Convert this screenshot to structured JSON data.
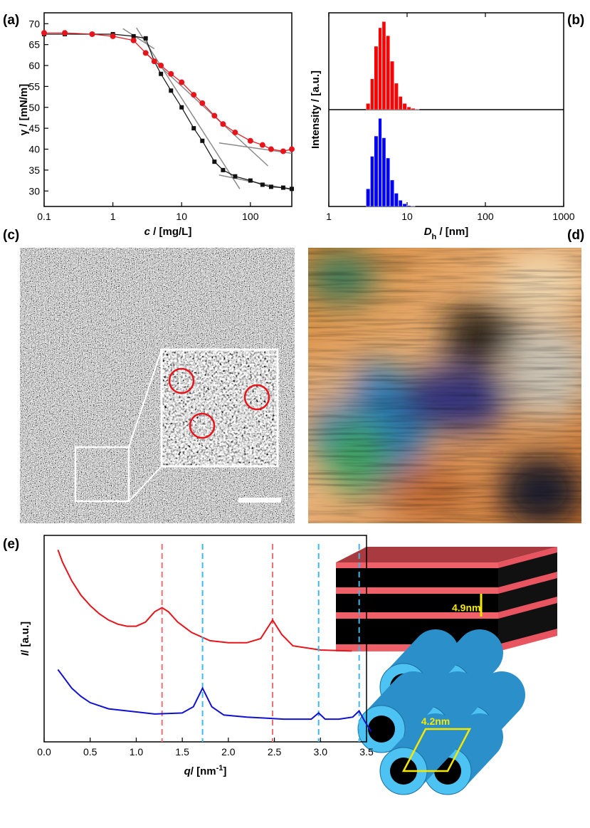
{
  "panel_labels": [
    "(a)",
    "(b)",
    "(c)",
    "(d)",
    "(e)"
  ],
  "chart_data": [
    {
      "type": "line",
      "x_scale": "log",
      "x_label": [
        "c",
        " / [mg/L]"
      ],
      "y_label": "γ / [mN/m]",
      "xlim": [
        0.1,
        400
      ],
      "xticks": [
        0.1,
        1,
        10,
        100
      ],
      "ylim": [
        26.3,
        72.6
      ],
      "yticks": [
        30,
        35,
        40,
        45,
        50,
        55,
        60,
        65,
        70
      ],
      "x": [
        0.1,
        0.2,
        0.5,
        1,
        2,
        3,
        4,
        5,
        7,
        10,
        15,
        20,
        30,
        40,
        60,
        100,
        150,
        200,
        300,
        400
      ],
      "series": [
        {
          "color": "#111111",
          "marker": "square",
          "values": [
            67.5,
            67.5,
            67.5,
            67.5,
            67,
            66.5,
            61,
            58,
            54,
            50,
            45,
            42,
            37,
            35,
            33.5,
            32.5,
            31.5,
            31,
            30.8,
            30.5
          ]
        },
        {
          "color": "#e8141b",
          "marker": "circle",
          "values": [
            67.8,
            67.8,
            67.5,
            67,
            66,
            63,
            61,
            60,
            58,
            56,
            53,
            51,
            48,
            46,
            44,
            42,
            41,
            40,
            39.5,
            40
          ]
        }
      ],
      "fit_color": "#8a8a8a",
      "fits": [
        {
          "x": [
            1.4,
            4
          ],
          "y": [
            68.8,
            64
          ]
        },
        {
          "x": [
            2.2,
            70
          ],
          "y": [
            69,
            30.5
          ]
        },
        {
          "x": [
            3,
            180
          ],
          "y": [
            63,
            36
          ]
        },
        {
          "x": [
            35,
            400
          ],
          "y": [
            41.5,
            39
          ]
        },
        {
          "x": [
            35,
            400
          ],
          "y": [
            33.8,
            30.3
          ]
        }
      ]
    },
    {
      "type": "histogram",
      "x_scale": "log",
      "x_label": [
        "D",
        "h",
        " / [nm]"
      ],
      "y_label": "Intensity / [a.u.]",
      "xlim": [
        1,
        1000
      ],
      "xticks": [
        1,
        10,
        100,
        1000
      ],
      "ylim": [
        0,
        1.1
      ],
      "bins": [
        3.0,
        3.4,
        3.8,
        4.3,
        4.8,
        5.4,
        6.1,
        6.9,
        7.8,
        8.8,
        10,
        11.3,
        12.8,
        14.5
      ],
      "series": [
        {
          "color": "#ff0000",
          "panel": "top",
          "values": [
            0.07,
            0.35,
            0.72,
            0.93,
            1.0,
            0.84,
            0.55,
            0.3,
            0.15,
            0.07,
            0.03,
            0.015,
            0.005
          ]
        },
        {
          "color": "#0000ff",
          "panel": "bottom",
          "values": [
            0.2,
            0.57,
            0.8,
            1.0,
            0.78,
            0.55,
            0.3,
            0.15,
            0.07,
            0.03,
            0.01,
            0.005,
            0
          ]
        }
      ]
    },
    {
      "type": "line",
      "x_label": [
        "q",
        "/ [nm",
        "-1",
        "]"
      ],
      "y_label": [
        "I",
        "/ [a.u.]"
      ],
      "xlim": [
        0,
        3.5
      ],
      "xticks": [
        {
          "value": 0,
          "label": "0.0"
        },
        0.5,
        {
          "value": 1,
          "label": "1.0"
        },
        1.5,
        {
          "value": 2,
          "label": "2.0"
        },
        2.5,
        {
          "value": 3,
          "label": "3.0"
        },
        3.5
      ],
      "ylim": [
        0,
        1
      ],
      "series": [
        {
          "color": "#e8141b",
          "peak_color": "#f07070",
          "x": [
            0.15,
            0.2,
            0.3,
            0.4,
            0.5,
            0.6,
            0.7,
            0.8,
            0.9,
            1.0,
            1.1,
            1.2,
            1.28,
            1.35,
            1.45,
            1.6,
            1.8,
            2.0,
            2.2,
            2.35,
            2.48,
            2.58,
            2.7,
            3.0,
            3.34
          ],
          "values": [
            0.93,
            0.87,
            0.78,
            0.71,
            0.66,
            0.62,
            0.59,
            0.57,
            0.56,
            0.56,
            0.58,
            0.63,
            0.65,
            0.63,
            0.58,
            0.53,
            0.49,
            0.48,
            0.48,
            0.5,
            0.59,
            0.52,
            0.465,
            0.445,
            0.44
          ],
          "peaks": [
            1.28,
            2.48
          ]
        },
        {
          "color": "#1010d0",
          "peak_color": "#3cb8ec",
          "x": [
            0.15,
            0.2,
            0.3,
            0.4,
            0.5,
            0.7,
            0.9,
            1.2,
            1.5,
            1.62,
            1.72,
            1.82,
            1.95,
            2.2,
            2.6,
            2.9,
            2.98,
            3.05,
            3.2,
            3.35,
            3.42,
            3.48,
            3.55
          ],
          "values": [
            0.35,
            0.32,
            0.26,
            0.22,
            0.19,
            0.16,
            0.15,
            0.135,
            0.14,
            0.17,
            0.26,
            0.17,
            0.13,
            0.12,
            0.11,
            0.11,
            0.14,
            0.11,
            0.11,
            0.12,
            0.15,
            0.1,
            0.05
          ],
          "peaks": [
            1.72,
            2.98,
            3.42
          ]
        }
      ]
    }
  ],
  "schematics": {
    "lamellar_spacing": "4.9nm",
    "hexagonal_spacing": "4.2nm"
  }
}
